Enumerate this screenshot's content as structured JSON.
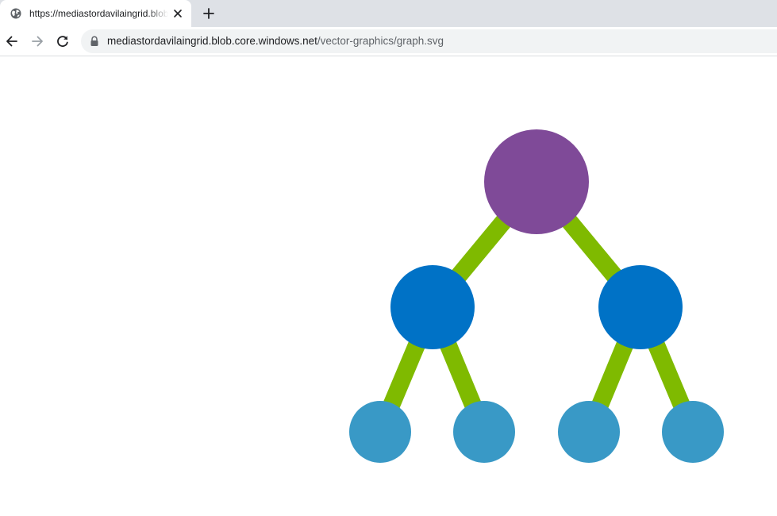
{
  "browser": {
    "tab": {
      "title": "https://mediastordavilaingrid.blob.core.windows.net/vector-graphics/graph.svg",
      "favicon": "globe-icon",
      "close_icon": "close-icon"
    },
    "new_tab_icon": "plus-icon",
    "toolbar": {
      "back_icon": "arrow-left-icon",
      "forward_icon": "arrow-right-icon",
      "reload_icon": "reload-icon",
      "lock_icon": "lock-icon"
    },
    "address_bar": {
      "host": "mediastordavilaingrid.blob.core.windows.net",
      "path": "/vector-graphics/graph.svg"
    }
  },
  "graph": {
    "colors": {
      "root": "#7f4a98",
      "middle": "#0072c6",
      "leaf": "#3999c6",
      "edge": "#7fba00"
    },
    "nodes": [
      {
        "id": "root",
        "level": "root"
      },
      {
        "id": "left-child",
        "level": "middle"
      },
      {
        "id": "right-child",
        "level": "middle"
      },
      {
        "id": "leaf-1",
        "level": "leaf"
      },
      {
        "id": "leaf-2",
        "level": "leaf"
      },
      {
        "id": "leaf-3",
        "level": "leaf"
      },
      {
        "id": "leaf-4",
        "level": "leaf"
      }
    ],
    "edges": [
      [
        "root",
        "left-child"
      ],
      [
        "root",
        "right-child"
      ],
      [
        "left-child",
        "leaf-1"
      ],
      [
        "left-child",
        "leaf-2"
      ],
      [
        "right-child",
        "leaf-3"
      ],
      [
        "right-child",
        "leaf-4"
      ]
    ]
  }
}
